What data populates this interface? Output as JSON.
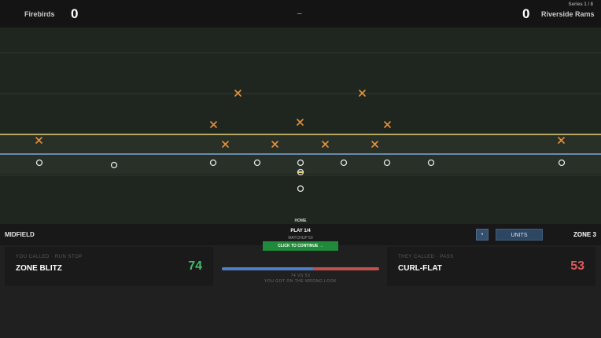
{
  "scoreboard": {
    "home_team": "Firebirds",
    "home_score": "0",
    "separator": "–",
    "away_score": "0",
    "away_team": "Riverside Rams",
    "series": "Series 1 / 8"
  },
  "field": {
    "scrimmage_line_color": "#e8d27a",
    "target_line_color": "#7fa7d8",
    "defense_marker": "x",
    "defense_color": "#e8923a",
    "offense_marker": "o",
    "offense_color": "#e6e6e6",
    "ball_carrier_color": "#e8d27a"
  },
  "status": {
    "field_position": "MIDFIELD",
    "home_label": "HOME",
    "play_counter": "PLAY 1/4",
    "matchup_label": "MATCHUP 50",
    "continue_label": "CLICK TO CONTINUE →",
    "toggle_icon": "dot-icon",
    "toggle_label": "•",
    "units_label": "UNITS",
    "zone_label": "ZONE 3"
  },
  "your_call": {
    "tag": "YOU CALLED · RUN STOP",
    "play": "ZONE BLITZ",
    "rating": "74"
  },
  "their_call": {
    "tag": "THEY CALLED · PASS",
    "play": "CURL-FLAT",
    "rating": "53"
  },
  "matchup": {
    "summary": "74 VS 53",
    "result": "YOU GOT ON THE WRONG LOOK",
    "your_share": 0.58
  }
}
